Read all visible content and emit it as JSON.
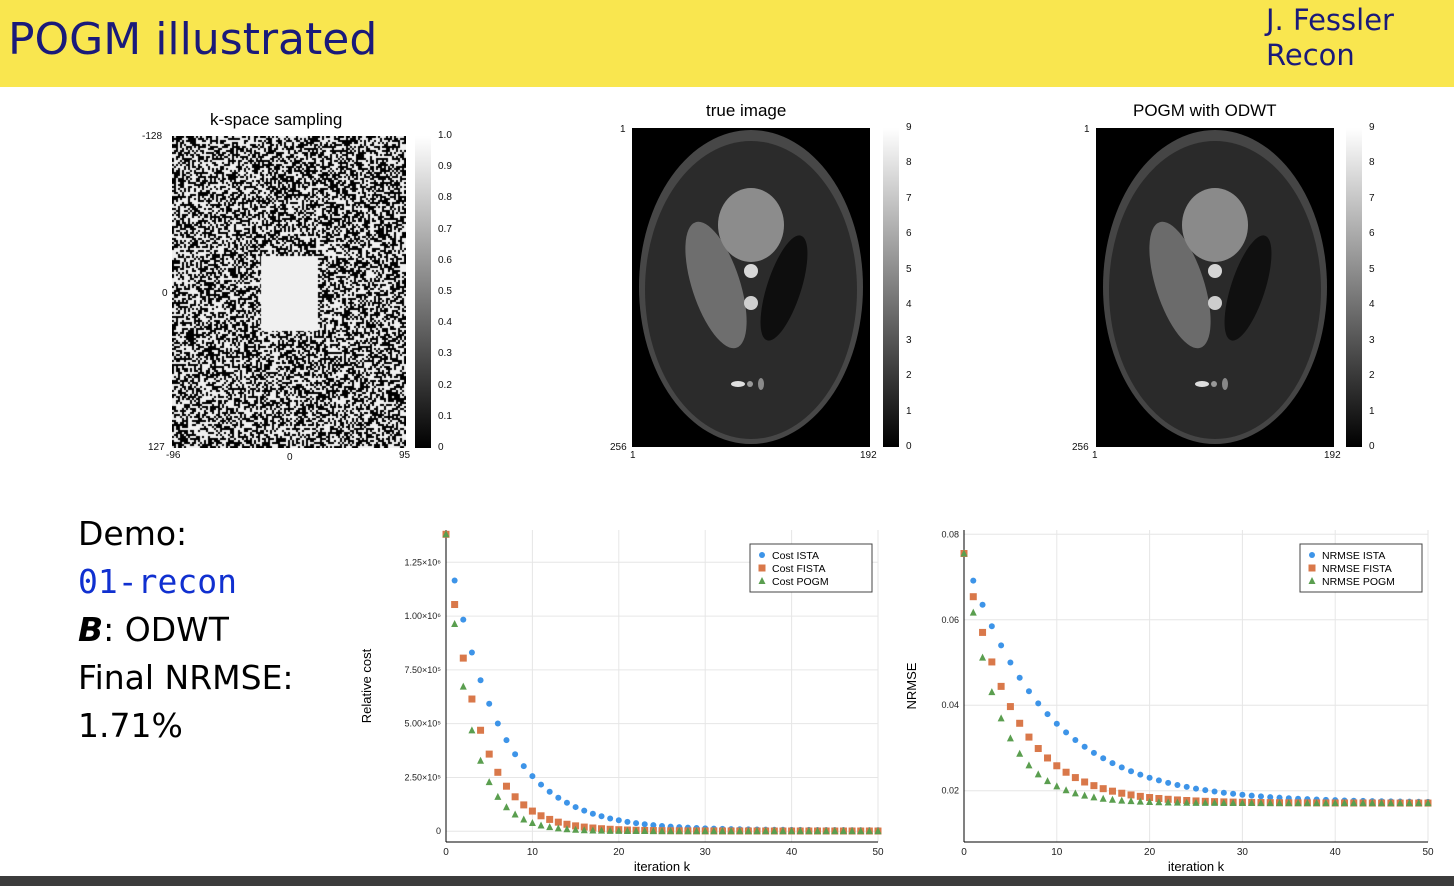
{
  "header": {
    "title": "POGM illustrated",
    "author_line1": "J. Fessler",
    "author_line2": "Recon"
  },
  "panels": {
    "kspace": {
      "title": "k-space sampling",
      "y_ticks": [
        "-128",
        "0",
        "127"
      ],
      "x_ticks": [
        "-96",
        "0",
        "95"
      ],
      "colorbar_ticks": [
        "1.0",
        "0.9",
        "0.8",
        "0.7",
        "0.6",
        "0.5",
        "0.4",
        "0.3",
        "0.2",
        "0.1",
        "0"
      ]
    },
    "true_image": {
      "title": "true image",
      "y_ticks": [
        "1",
        "256"
      ],
      "x_ticks": [
        "1",
        "192"
      ],
      "colorbar_ticks": [
        "9",
        "8",
        "7",
        "6",
        "5",
        "4",
        "3",
        "2",
        "1",
        "0"
      ]
    },
    "pogm_image": {
      "title": "POGM with ODWT",
      "y_ticks": [
        "1",
        "256"
      ],
      "x_ticks": [
        "1",
        "192"
      ],
      "colorbar_ticks": [
        "9",
        "8",
        "7",
        "6",
        "5",
        "4",
        "3",
        "2",
        "1",
        "0"
      ]
    }
  },
  "demo": {
    "line1": "Demo:",
    "line2": "01-recon",
    "line3_sym": "B",
    "line3_rest": ": ODWT",
    "line4": "Final NRMSE:",
    "line5": "1.71%"
  },
  "colors": {
    "header_bg": "#f9e64f",
    "title_text": "#1a1a7a",
    "ista": "#3d94e8",
    "fista": "#d9784a",
    "pogm": "#5a9e4f"
  },
  "chart_data": [
    {
      "type": "scatter",
      "xlabel": "iteration k",
      "ylabel": "Relative cost",
      "xlim": [
        0,
        50
      ],
      "ylim": [
        -50000,
        1400000
      ],
      "x_ticks": [
        0,
        10,
        20,
        30,
        40,
        50
      ],
      "y_ticks": [
        0,
        250000,
        500000,
        750000,
        1000000,
        1250000
      ],
      "y_tick_labels": [
        "0",
        "2.50×10⁵",
        "5.00×10⁵",
        "7.50×10⁵",
        "1.00×10⁶",
        "1.25×10⁶"
      ],
      "grid": true,
      "legend": "top-right",
      "series": [
        {
          "name": "Cost ISTA",
          "marker": "circle",
          "color": "#3d94e8",
          "model": {
            "start": 1380000,
            "end": 5000,
            "decay": 0.17
          }
        },
        {
          "name": "Cost FISTA",
          "marker": "square",
          "color": "#d9784a",
          "model": {
            "start": 1380000,
            "end": 1000,
            "decay": 0.27
          }
        },
        {
          "name": "Cost POGM",
          "marker": "triangle",
          "color": "#5a9e4f",
          "model": {
            "start": 1380000,
            "end": 500,
            "decay": 0.36
          }
        }
      ]
    },
    {
      "type": "scatter",
      "xlabel": "iteration k",
      "ylabel": "NRMSE",
      "xlim": [
        0,
        50
      ],
      "ylim": [
        0.008,
        0.081
      ],
      "x_ticks": [
        0,
        10,
        20,
        30,
        40,
        50
      ],
      "y_ticks": [
        0.02,
        0.04,
        0.06,
        0.08
      ],
      "y_tick_labels": [
        "0.02",
        "0.04",
        "0.06",
        "0.08"
      ],
      "grid": true,
      "legend": "top-right",
      "series": [
        {
          "name": "NRMSE ISTA",
          "marker": "circle",
          "color": "#3d94e8",
          "model": {
            "start": 0.0755,
            "end": 0.0172,
            "decay": 0.115
          }
        },
        {
          "name": "NRMSE FISTA",
          "marker": "square",
          "color": "#d9784a",
          "model": {
            "start": 0.0755,
            "end": 0.0171,
            "decay": 0.19
          }
        },
        {
          "name": "NRMSE POGM",
          "marker": "triangle",
          "color": "#5a9e4f",
          "model": {
            "start": 0.0755,
            "end": 0.0171,
            "decay": 0.27
          }
        }
      ]
    }
  ]
}
